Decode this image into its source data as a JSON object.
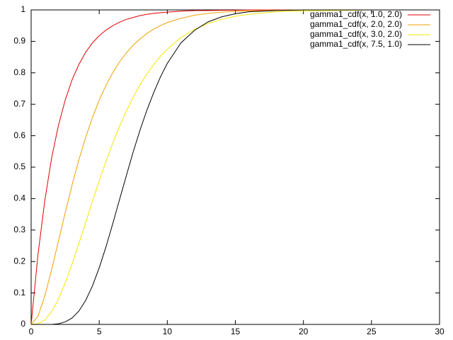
{
  "chart_data": {
    "type": "line",
    "x": [
      0,
      0.5,
      1,
      1.5,
      2,
      2.5,
      3,
      3.5,
      4,
      4.5,
      5,
      5.5,
      6,
      6.5,
      7,
      7.5,
      8,
      8.5,
      9,
      9.5,
      10,
      11,
      12,
      13,
      14,
      15,
      16,
      18,
      20,
      25,
      30
    ],
    "series": [
      {
        "name": "gamma1_cdf(x, 1.0, 2.0)",
        "color": "#e00000",
        "values": [
          0,
          0.221,
          0.393,
          0.528,
          0.632,
          0.713,
          0.777,
          0.826,
          0.865,
          0.895,
          0.918,
          0.936,
          0.95,
          0.961,
          0.97,
          0.976,
          0.982,
          0.986,
          0.989,
          0.991,
          0.993,
          0.996,
          0.998,
          0.998,
          0.999,
          0.999,
          1,
          1,
          1,
          1,
          1
        ]
      },
      {
        "name": "gamma1_cdf(x, 2.0, 2.0)",
        "color": "#f0a000",
        "values": [
          0,
          0.026,
          0.09,
          0.173,
          0.264,
          0.355,
          0.442,
          0.522,
          0.594,
          0.657,
          0.713,
          0.76,
          0.801,
          0.835,
          0.864,
          0.888,
          0.908,
          0.925,
          0.939,
          0.95,
          0.96,
          0.973,
          0.983,
          0.989,
          0.993,
          0.995,
          0.997,
          0.999,
          1,
          1,
          1
        ]
      },
      {
        "name": "gamma1_cdf(x, 3.0, 2.0)",
        "color": "#f4e800",
        "values": [
          0,
          0.002,
          0.014,
          0.04,
          0.08,
          0.132,
          0.191,
          0.256,
          0.323,
          0.391,
          0.456,
          0.519,
          0.577,
          0.63,
          0.679,
          0.723,
          0.762,
          0.796,
          0.826,
          0.853,
          0.875,
          0.912,
          0.938,
          0.957,
          0.97,
          0.98,
          0.986,
          0.994,
          0.997,
          1,
          1
        ]
      },
      {
        "name": "gamma1_cdf(x, 7.5, 1.0)",
        "color": "#000000",
        "values": [
          0,
          0,
          0,
          0,
          0.002,
          0.008,
          0.02,
          0.042,
          0.076,
          0.122,
          0.18,
          0.247,
          0.321,
          0.398,
          0.474,
          0.549,
          0.618,
          0.681,
          0.737,
          0.787,
          0.83,
          0.895,
          0.935,
          0.962,
          0.978,
          0.988,
          0.994,
          0.998,
          1,
          1,
          1
        ]
      }
    ],
    "xlim": [
      0,
      30
    ],
    "xticks": [
      0,
      5,
      10,
      15,
      20,
      25,
      30
    ],
    "ylim": [
      0,
      1
    ],
    "yticks": [
      0,
      0.1,
      0.2,
      0.3,
      0.4,
      0.5,
      0.6,
      0.7,
      0.8,
      0.9,
      1
    ],
    "grid": false,
    "legend": "top-right"
  }
}
